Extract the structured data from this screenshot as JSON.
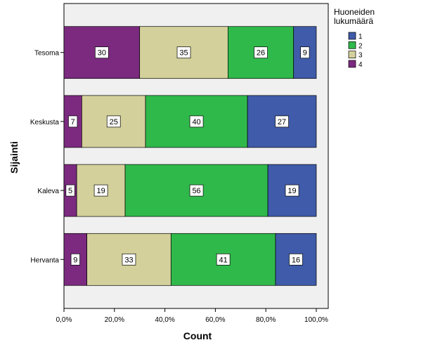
{
  "chart_data": {
    "type": "bar",
    "orientation": "horizontal",
    "stacked": true,
    "normalized_percent": true,
    "xlabel": "Count",
    "ylabel": "Sijainti",
    "xlim": [
      0,
      100
    ],
    "x_ticks": [
      "0,0%",
      "20,0%",
      "40,0%",
      "60,0%",
      "80,0%",
      "100,0%"
    ],
    "categories": [
      "Tesoma",
      "Keskusta",
      "Kaleva",
      "Hervanta"
    ],
    "legend": {
      "title_lines": [
        "Huoneiden",
        "lukumäärä"
      ],
      "placement": "right",
      "entries": [
        "1",
        "2",
        "3",
        "4"
      ]
    },
    "series": [
      {
        "name": "4",
        "color": "#7b2a7f",
        "values": [
          30,
          7,
          5,
          9
        ]
      },
      {
        "name": "3",
        "color": "#d4d09b",
        "values": [
          35,
          25,
          19,
          33
        ]
      },
      {
        "name": "2",
        "color": "#2fb94b",
        "values": [
          26,
          40,
          56,
          41
        ]
      },
      {
        "name": "1",
        "color": "#3f5ba9",
        "values": [
          9,
          27,
          19,
          16
        ]
      }
    ],
    "grid": false,
    "background_color": "#f0f0f0"
  }
}
